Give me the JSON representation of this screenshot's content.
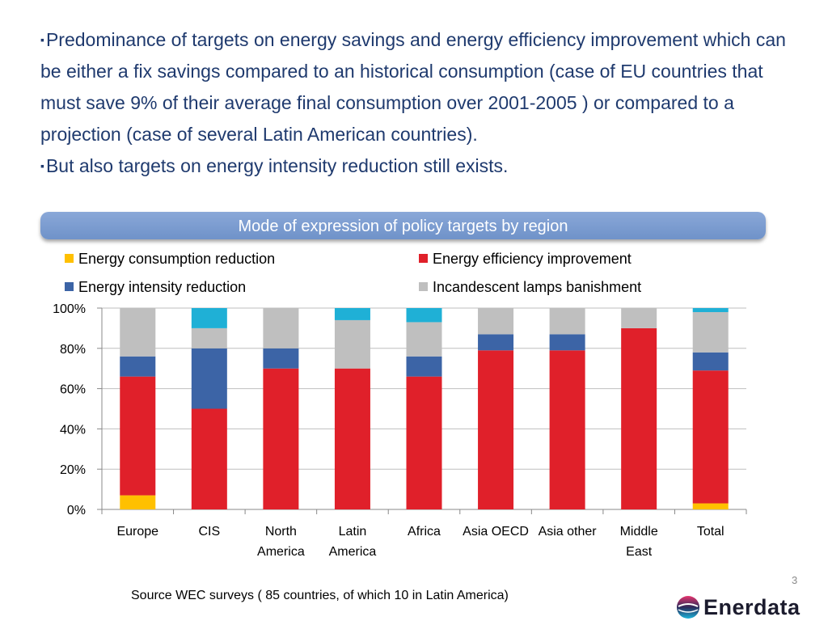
{
  "bullets": [
    {
      "mark": "▪",
      "text": "Predominance of targets on energy savings and energy efficiency improvement which can be either a fix savings compared to an historical consumption (case of EU countries that must save 9% of their average final consumption over 2001-2005 ) or compared to a projection (case of several Latin American countries)."
    },
    {
      "mark": "▪",
      "text": "But also targets on energy intensity reduction still exists."
    }
  ],
  "banner": {
    "title": "Mode of expression of policy targets by region"
  },
  "chart_data": {
    "type": "bar",
    "stacked": true,
    "categories": [
      [
        "Europe"
      ],
      [
        "CIS"
      ],
      [
        "North",
        "America"
      ],
      [
        "Latin",
        "America"
      ],
      [
        "Africa"
      ],
      [
        "Asia OECD"
      ],
      [
        "Asia other"
      ],
      [
        "Middle",
        "East"
      ],
      [
        "Total"
      ]
    ],
    "series": [
      {
        "name": "Energy consumption reduction",
        "color": "#ffc000",
        "values": [
          7,
          0,
          0,
          0,
          0,
          0,
          0,
          0,
          3
        ]
      },
      {
        "name": "Energy efficiency improvement",
        "color": "#e0202a",
        "values": [
          59,
          50,
          70,
          70,
          66,
          79,
          79,
          90,
          66
        ]
      },
      {
        "name": "Energy intensity reduction",
        "color": "#3c64a6",
        "values": [
          10,
          30,
          10,
          0,
          10,
          8,
          8,
          0,
          9
        ]
      },
      {
        "name": "Incandescent lamps banishment",
        "color": "#bfbfbf",
        "values": [
          24,
          10,
          20,
          24,
          17,
          13,
          13,
          10,
          20
        ]
      },
      {
        "name": "",
        "color": "#1fb0d6",
        "values": [
          0,
          10,
          0,
          6,
          7,
          0,
          0,
          0,
          2
        ]
      }
    ],
    "yticks": [
      "0%",
      "20%",
      "40%",
      "60%",
      "80%",
      "100%"
    ],
    "ylim": [
      0,
      100
    ],
    "grid": true,
    "legend_position": "top"
  },
  "footer": {
    "page_number": "3",
    "source": "Source  WEC surveys ( 85 countries, of which 10 in Latin America)",
    "logo_text": "Enerdata"
  }
}
